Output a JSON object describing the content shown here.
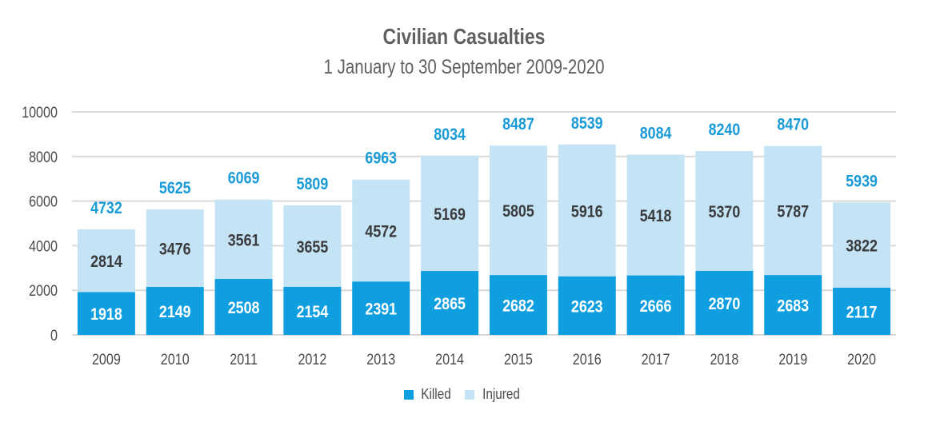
{
  "chart_data": {
    "type": "bar",
    "stacked": true,
    "title": "Civilian Casualties",
    "subtitle": "1 January to 30 September 2009-2020",
    "xlabel": "",
    "ylabel": "",
    "ylim": [
      0,
      10000
    ],
    "yticks": [
      0,
      2000,
      4000,
      6000,
      8000,
      10000
    ],
    "grid": true,
    "legend_position": "bottom",
    "categories": [
      "2009",
      "2010",
      "2011",
      "2012",
      "2013",
      "2014",
      "2015",
      "2016",
      "2017",
      "2018",
      "2019",
      "2020"
    ],
    "series": [
      {
        "name": "Killed",
        "color": "#0f9ee0",
        "values": [
          1918,
          2149,
          2508,
          2154,
          2391,
          2865,
          2682,
          2623,
          2666,
          2870,
          2683,
          2117
        ]
      },
      {
        "name": "Injured",
        "color": "#c4e3f5",
        "values": [
          2814,
          3476,
          3561,
          3655,
          4572,
          5169,
          5805,
          5916,
          5418,
          5370,
          5787,
          3822
        ]
      }
    ],
    "totals": [
      4732,
      5625,
      6069,
      5809,
      6963,
      8034,
      8487,
      8539,
      8084,
      8240,
      8470,
      5939
    ],
    "total_label_color": "#1a9bd7"
  }
}
